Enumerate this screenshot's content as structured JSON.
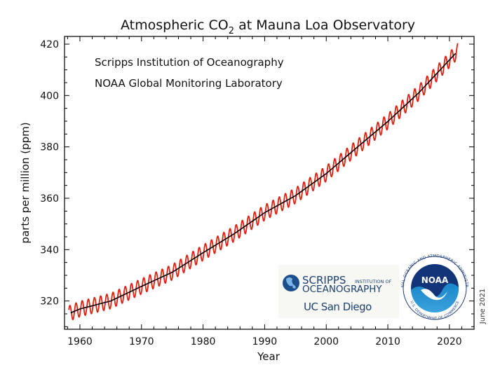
{
  "chart_data": {
    "type": "line",
    "title": {
      "main": "Atmospheric CO",
      "sub": "2",
      "rest": " at Mauna Loa Observatory"
    },
    "xlabel": "Year",
    "ylabel": "parts per million (ppm)",
    "xlim": [
      1957.5,
      2024
    ],
    "ylim": [
      309,
      423
    ],
    "xticks": [
      1960,
      1970,
      1980,
      1990,
      2000,
      2010,
      2020
    ],
    "yticks": [
      320,
      340,
      360,
      380,
      400,
      420
    ],
    "annotations": [
      "Scripps Institution of Oceanography",
      "NOAA Global Monitoring Laboratory"
    ],
    "date_note": "June 2021",
    "series": [
      {
        "kind": "monthly",
        "color": "#e02010",
        "x_start": 1958.2,
        "x_end": 2021.4,
        "seasonal_amplitude_ppm": 3.0
      },
      {
        "kind": "trend",
        "color": "#000000",
        "x": [
          1958.5,
          1960,
          1965,
          1970,
          1975,
          1980,
          1985,
          1990,
          1995,
          2000,
          2005,
          2010,
          2015,
          2021
        ],
        "y": [
          315.4,
          316.9,
          320.0,
          325.7,
          331.2,
          338.8,
          346.1,
          354.4,
          361.0,
          369.6,
          379.8,
          389.9,
          401.0,
          416.4
        ]
      }
    ]
  },
  "logos": {
    "scripps_line1": "SCRIPPS",
    "scripps_line1b": "INSTITUTION OF",
    "scripps_line2": "OCEANOGRAPHY",
    "ucsd": "UC San Diego",
    "noaa": "NOAA",
    "noaa_ring": "NATIONAL OCEANIC AND ATMOSPHERIC ADMINISTRATION",
    "noaa_ring_bottom": "U.S. DEPARTMENT OF COMMERCE"
  }
}
